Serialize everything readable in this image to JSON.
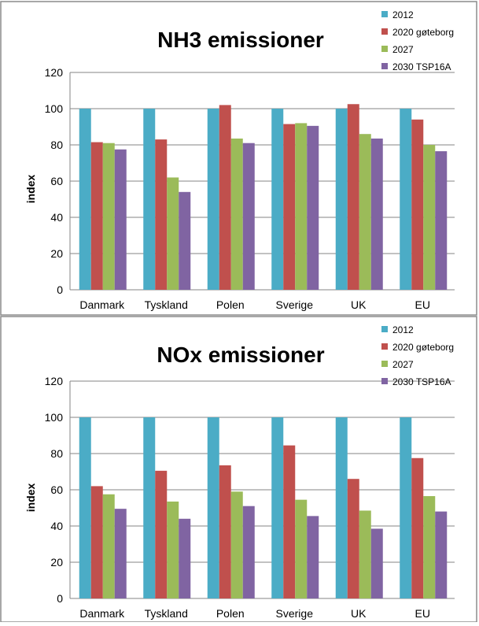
{
  "chart_data": [
    {
      "type": "bar",
      "title": "NH3 emissioner",
      "ylabel": "index",
      "xlabel": "",
      "ylim": [
        0,
        120
      ],
      "yticks": [
        0,
        20,
        40,
        60,
        80,
        100,
        120
      ],
      "grid": true,
      "legend": "top-right",
      "categories": [
        "Danmark",
        "Tyskland",
        "Polen",
        "Sverige",
        "UK",
        "EU"
      ],
      "series": [
        {
          "name": "2012",
          "color": "#4BACC6",
          "values": [
            100,
            100,
            100,
            100,
            100,
            100
          ]
        },
        {
          "name": "2020 gøteborg",
          "color": "#C0504D",
          "values": [
            81.5,
            83,
            102,
            91.5,
            102.5,
            94
          ]
        },
        {
          "name": "2027",
          "color": "#9BBB59",
          "values": [
            81,
            62,
            83.5,
            92,
            86,
            80
          ]
        },
        {
          "name": "2030 TSP16A",
          "color": "#8064A2",
          "values": [
            77.5,
            54,
            81,
            90.5,
            83.5,
            76.5
          ]
        }
      ]
    },
    {
      "type": "bar",
      "title": "NOx emissioner",
      "ylabel": "index",
      "xlabel": "",
      "ylim": [
        0,
        120
      ],
      "yticks": [
        0,
        20,
        40,
        60,
        80,
        100,
        120
      ],
      "grid": true,
      "legend": "top-right",
      "categories": [
        "Danmark",
        "Tyskland",
        "Polen",
        "Sverige",
        "UK",
        "EU"
      ],
      "series": [
        {
          "name": "2012",
          "color": "#4BACC6",
          "values": [
            100,
            100,
            100,
            100,
            100,
            100
          ]
        },
        {
          "name": "2020 gøteborg",
          "color": "#C0504D",
          "values": [
            62,
            70.5,
            73.5,
            84.5,
            66,
            77.5
          ]
        },
        {
          "name": "2027",
          "color": "#9BBB59",
          "values": [
            57.5,
            53.5,
            59,
            54.5,
            48.5,
            56.5
          ]
        },
        {
          "name": "2030 TSP16A",
          "color": "#8064A2",
          "values": [
            49.5,
            44,
            51,
            45.5,
            38.5,
            48
          ]
        }
      ]
    }
  ]
}
